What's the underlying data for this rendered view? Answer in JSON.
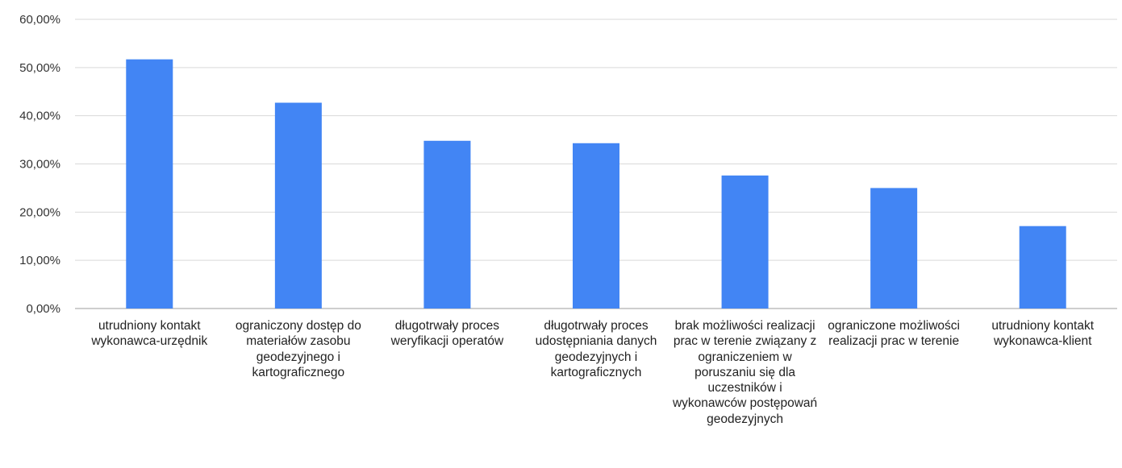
{
  "chart_data": {
    "type": "bar",
    "categories": [
      "utrudniony kontakt wykonawca-urzędnik",
      "ograniczony dostęp do materiałów zasobu geodezyjnego i kartograficznego",
      "długotrwały proces weryfikacji operatów",
      "długotrwały proces udostępniania danych geodezyjnych i kartograficznych",
      "brak możliwości realizacji prac w terenie związany z ograniczeniem w poruszaniu się dla uczestników i wykonawców postępowań geodezyjnych",
      "ograniczone możliwości realizacji prac w terenie",
      "utrudniony kontakt wykonawca-klient"
    ],
    "values": [
      51.7,
      42.7,
      34.8,
      34.3,
      27.6,
      25.0,
      17.1
    ],
    "ytick_labels": [
      "0,00%",
      "10,00%",
      "20,00%",
      "30,00%",
      "40,00%",
      "50,00%",
      "60,00%"
    ],
    "ylim": [
      0,
      60
    ],
    "grid": true,
    "bar_color": "#4285f4"
  }
}
